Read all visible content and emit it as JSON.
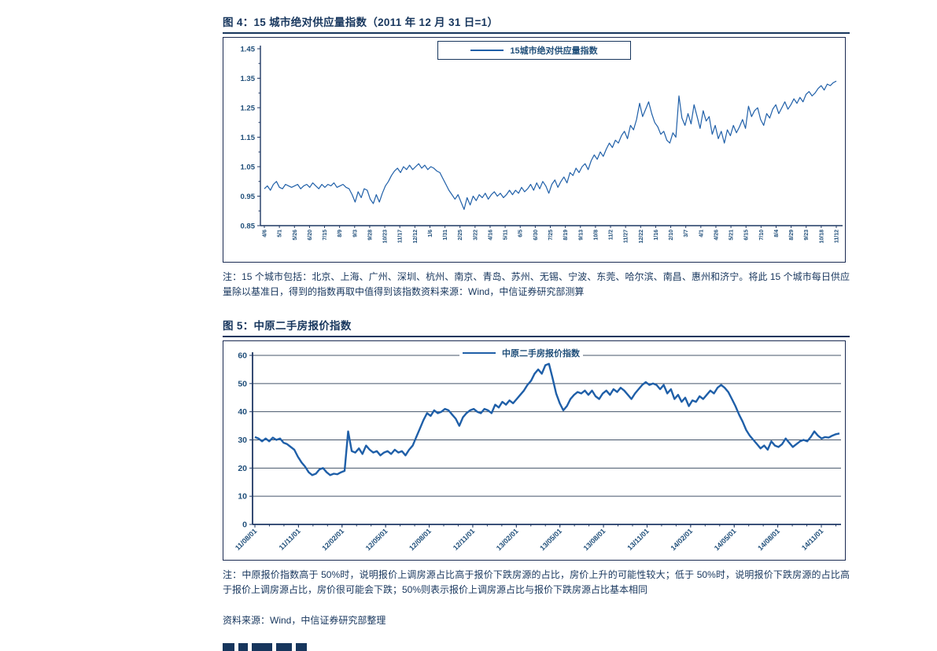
{
  "figure4": {
    "title": "图 4：15 城市绝对供应量指数（2011 年 12 月 31 日=1）",
    "legend": "15城市绝对供应量指数",
    "note": "注：15 个城市包括：北京、上海、广州、深圳、杭州、南京、青岛、苏州、无锡、宁波、东莞、哈尔滨、南昌、惠州和济宁。将此 15 个城市每日供应量除以基准日，得到的指数再取中值得到该指数资料来源：Wind，中信证券研究部测算"
  },
  "figure5": {
    "title": "图 5：中原二手房报价指数",
    "legend": "中原二手房报价指数",
    "note": "注：中原报价指数高于 50%时，说明报价上调房源占比高于报价下跌房源的占比，房价上升的可能性较大；低于 50%时，说明报价下跌房源的占比高于报价上调房源占比，房价很可能会下跌；50%则表示报价上调房源占比与报价下跌房源占比基本相同",
    "source": "资料来源：Wind，中信证券研究部整理"
  },
  "colors": {
    "line": "#1F5FA8",
    "navy": "#17365D",
    "tick_label": "#1F4E79",
    "axis": "#1F3864",
    "grid": "#44546A",
    "box_border": "#1A2A52"
  },
  "chart_data": [
    {
      "type": "line",
      "title": "15 城市绝对供应量指数（2011 年 12 月 31 日=1）",
      "legend": [
        "15城市绝对供应量指数"
      ],
      "ylim": [
        0.85,
        1.45
      ],
      "y_tick_labels": [
        "0.85",
        "0.95",
        "1.05",
        "1.15",
        "1.25",
        "1.35",
        "1.45"
      ],
      "y_ticks": [
        0.85,
        0.95,
        1.05,
        1.15,
        1.25,
        1.35,
        1.45
      ],
      "y_minor_step": 0.05,
      "grid": false,
      "legend_position": "top-center-boxed",
      "x_labels": [
        "4/6",
        "5/1",
        "5/26",
        "6/20",
        "7/15",
        "8/9",
        "9/3",
        "9/28",
        "10/23",
        "11/17",
        "12/12",
        "1/6",
        "1/31",
        "2/25",
        "3/22",
        "4/16",
        "5/11",
        "6/5",
        "6/30",
        "7/25",
        "8/19",
        "9/13",
        "10/8",
        "11/2",
        "11/27",
        "12/22",
        "1/16",
        "2/10",
        "3/7",
        "4/1",
        "4/26",
        "5/21",
        "6/15",
        "7/10",
        "8/4",
        "8/29",
        "9/23",
        "10/18",
        "11/12"
      ],
      "values": [
        0.975,
        0.985,
        0.97,
        0.99,
        1.0,
        0.98,
        0.975,
        0.99,
        0.985,
        0.98,
        0.985,
        0.99,
        0.975,
        0.985,
        0.99,
        0.98,
        0.995,
        0.985,
        0.975,
        0.99,
        0.98,
        0.99,
        0.985,
        0.995,
        0.98,
        0.985,
        0.99,
        0.98,
        0.975,
        0.955,
        0.93,
        0.965,
        0.945,
        0.975,
        0.97,
        0.94,
        0.925,
        0.955,
        0.93,
        0.96,
        0.985,
        1.0,
        1.02,
        1.035,
        1.045,
        1.03,
        1.05,
        1.04,
        1.055,
        1.04,
        1.05,
        1.06,
        1.045,
        1.055,
        1.04,
        1.05,
        1.045,
        1.035,
        1.03,
        1.01,
        0.99,
        0.97,
        0.955,
        0.94,
        0.955,
        0.93,
        0.905,
        0.945,
        0.92,
        0.95,
        0.935,
        0.955,
        0.945,
        0.96,
        0.94,
        0.955,
        0.965,
        0.95,
        0.96,
        0.945,
        0.955,
        0.97,
        0.955,
        0.97,
        0.96,
        0.98,
        0.965,
        0.975,
        0.99,
        0.97,
        0.995,
        0.975,
        1.0,
        0.985,
        0.96,
        0.99,
        1.005,
        0.98,
        1.0,
        1.015,
        0.995,
        1.03,
        1.02,
        1.045,
        1.03,
        1.05,
        1.06,
        1.04,
        1.07,
        1.09,
        1.075,
        1.1,
        1.085,
        1.11,
        1.13,
        1.115,
        1.14,
        1.13,
        1.155,
        1.17,
        1.145,
        1.19,
        1.175,
        1.21,
        1.265,
        1.22,
        1.245,
        1.27,
        1.23,
        1.2,
        1.185,
        1.16,
        1.17,
        1.14,
        1.13,
        1.165,
        1.15,
        1.29,
        1.215,
        1.19,
        1.23,
        1.195,
        1.26,
        1.22,
        1.18,
        1.24,
        1.205,
        1.22,
        1.16,
        1.19,
        1.145,
        1.17,
        1.13,
        1.175,
        1.155,
        1.19,
        1.165,
        1.185,
        1.21,
        1.18,
        1.255,
        1.22,
        1.24,
        1.25,
        1.21,
        1.19,
        1.23,
        1.215,
        1.245,
        1.26,
        1.23,
        1.25,
        1.27,
        1.245,
        1.26,
        1.28,
        1.265,
        1.285,
        1.27,
        1.295,
        1.305,
        1.29,
        1.3,
        1.315,
        1.325,
        1.31,
        1.33,
        1.325,
        1.335,
        1.34
      ]
    },
    {
      "type": "line",
      "title": "中原二手房报价指数",
      "legend": [
        "中原二手房报价指数"
      ],
      "ylim": [
        0,
        60
      ],
      "y_tick_labels": [
        "0",
        "10",
        "20",
        "30",
        "40",
        "50",
        "60"
      ],
      "y_ticks": [
        0,
        10,
        20,
        30,
        40,
        50,
        60
      ],
      "grid": true,
      "legend_position": "top-center",
      "x_labels": [
        "11/08/01",
        "11/11/01",
        "12/02/01",
        "12/05/01",
        "12/08/01",
        "12/11/01",
        "13/02/01",
        "13/05/01",
        "13/08/01",
        "13/11/01",
        "14/02/01",
        "14/05/01",
        "14/08/01",
        "14/11/01"
      ],
      "values": [
        31,
        30.5,
        29.5,
        30.5,
        29.5,
        30.8,
        30,
        30.5,
        29,
        28.5,
        27.5,
        26.5,
        24,
        22,
        20.5,
        18.5,
        17.5,
        18,
        19.5,
        20,
        18.5,
        17.5,
        18,
        17.8,
        18.5,
        19,
        33,
        26,
        25.5,
        27,
        25,
        28,
        26.5,
        25.5,
        26,
        24.5,
        25.5,
        26,
        25,
        26.5,
        25.5,
        26,
        24.5,
        26.5,
        28,
        31,
        34,
        37,
        39.5,
        38.5,
        40.5,
        39.5,
        40,
        41,
        40.5,
        39,
        37.5,
        35,
        38,
        39.5,
        40.5,
        41,
        40,
        39.5,
        41,
        40.5,
        39.5,
        42.5,
        41.5,
        43.5,
        42.5,
        44,
        43,
        44.5,
        46,
        47.5,
        49.5,
        51,
        53.5,
        55,
        53.5,
        56.5,
        57,
        52,
        46.5,
        43,
        40.5,
        42,
        44.5,
        46,
        47,
        46.5,
        47.5,
        46,
        47.5,
        45.5,
        44.5,
        46.5,
        47.5,
        46,
        48,
        47,
        48.5,
        47.5,
        46,
        44.5,
        46.5,
        48,
        49.5,
        50.5,
        49.5,
        50,
        49.5,
        48,
        49.5,
        46.5,
        48,
        44.5,
        46,
        43.5,
        45,
        42,
        44,
        43.5,
        45.5,
        44.5,
        46,
        47.5,
        46.5,
        48.5,
        49.5,
        48.5,
        47,
        44.5,
        42,
        39,
        36.5,
        33.5,
        31.5,
        30,
        28.5,
        27,
        28,
        26.5,
        29.5,
        28,
        27.5,
        28.5,
        30.5,
        29,
        27.5,
        28.5,
        29.5,
        30,
        29.5,
        31,
        33,
        31.5,
        30.5,
        31,
        30.8,
        31.5,
        32,
        32.3
      ]
    }
  ]
}
